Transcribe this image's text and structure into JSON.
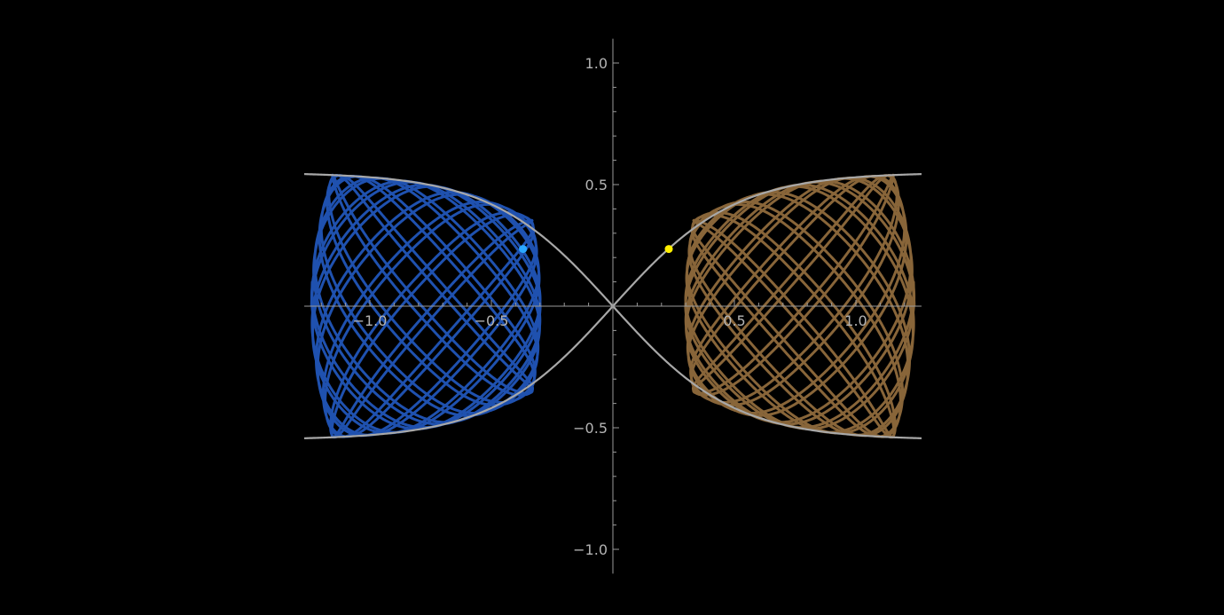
{
  "colors": {
    "background": "#000000",
    "axis": "#9a9a9a",
    "tick_label": "#b4b4b4",
    "envelope": "#a8a8a8",
    "left_curve": "#2155b8",
    "right_curve": "#8f6a3c",
    "left_marker": "#2aa8ff",
    "right_marker": "#ffee00"
  },
  "chart_data": {
    "type": "line",
    "title": "",
    "xlabel": "",
    "ylabel": "",
    "xlim": [
      -1.27,
      1.27
    ],
    "ylim": [
      -1.1,
      1.1
    ],
    "grid": false,
    "x_ticks": [
      {
        "value": -1.0,
        "label": "−1.0"
      },
      {
        "value": -0.5,
        "label": "−0.5"
      },
      {
        "value": 0.5,
        "label": "0.5"
      },
      {
        "value": 1.0,
        "label": "1.0"
      }
    ],
    "y_ticks": [
      {
        "value": 1.0,
        "label": "1.0"
      },
      {
        "value": 0.5,
        "label": "0.5"
      },
      {
        "value": -0.5,
        "label": "−0.5"
      },
      {
        "value": -1.0,
        "label": "−1.0"
      }
    ],
    "envelope": {
      "description": "y = ±0.55·tanh(x/0.5) style boundary curves crossing at origin",
      "amplitude": 0.55,
      "scale": 0.5
    },
    "series": [
      {
        "side": "left",
        "x_outer": -1.15,
        "x_inner": -0.38,
        "cusp_x": -0.9,
        "marker": [
          -0.37,
          0.235
        ]
      },
      {
        "side": "right",
        "x_outer": 1.15,
        "x_inner": 0.38,
        "cusp_x": 0.9,
        "marker": [
          0.23,
          0.235
        ]
      }
    ]
  }
}
